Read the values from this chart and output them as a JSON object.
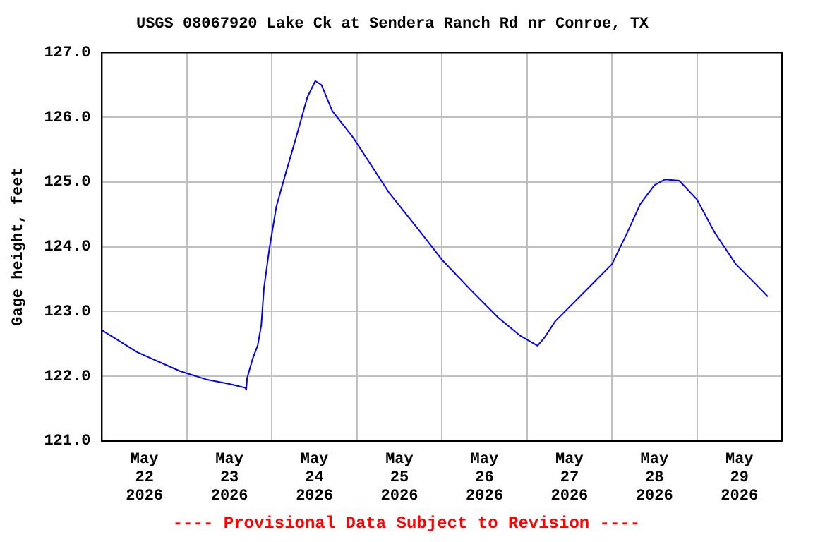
{
  "chart_data": {
    "type": "line",
    "title": "USGS 08067920 Lake Ck at Sendera Ranch Rd nr Conroe, TX",
    "ylabel": "Gage height, feet",
    "annotations": [
      "---- Provisional Data Subject to Revision ----"
    ],
    "x": [
      "2026-05-22T00:00",
      "2026-05-22T10:00",
      "2026-05-22T22:00",
      "2026-05-23T05:30",
      "2026-05-23T12:00",
      "2026-05-23T16:30",
      "2026-05-23T16:45",
      "2026-05-23T17:00",
      "2026-05-23T18:30",
      "2026-05-23T20:00",
      "2026-05-23T21:00",
      "2026-05-23T21:45",
      "2026-05-23T23:15",
      "2026-05-24T01:15",
      "2026-05-24T03:30",
      "2026-05-24T07:00",
      "2026-05-24T10:00",
      "2026-05-24T12:15",
      "2026-05-24T14:00",
      "2026-05-24T17:00",
      "2026-05-24T23:00",
      "2026-05-25T09:00",
      "2026-05-25T17:00",
      "2026-05-26T00:00",
      "2026-05-26T08:00",
      "2026-05-26T16:00",
      "2026-05-26T22:00",
      "2026-05-27T03:00",
      "2026-05-27T05:00",
      "2026-05-27T08:00",
      "2026-05-27T12:00",
      "2026-05-27T16:00",
      "2026-05-27T20:00",
      "2026-05-28T00:00",
      "2026-05-28T04:00",
      "2026-05-28T08:00",
      "2026-05-28T12:00",
      "2026-05-28T15:00",
      "2026-05-28T19:00",
      "2026-05-29T00:00",
      "2026-05-29T05:00",
      "2026-05-29T11:00",
      "2026-05-29T17:00",
      "2026-05-29T20:00"
    ],
    "series": [
      {
        "color": "#0000ff",
        "values": [
          122.71,
          122.37,
          122.08,
          121.95,
          121.88,
          121.82,
          121.79,
          121.97,
          122.26,
          122.48,
          122.79,
          123.36,
          123.96,
          124.62,
          125.06,
          125.72,
          126.31,
          126.56,
          126.5,
          126.1,
          125.68,
          124.84,
          124.29,
          123.8,
          123.34,
          122.9,
          122.63,
          122.47,
          122.6,
          122.85,
          123.07,
          123.29,
          123.51,
          123.73,
          124.18,
          124.66,
          124.95,
          125.04,
          125.02,
          124.73,
          124.22,
          123.73,
          123.4,
          123.23
        ]
      }
    ],
    "xlim": [
      "2026-05-22T00:00",
      "2026-05-30T00:00"
    ],
    "xticks": [
      {
        "value": "2026-05-22T12:00",
        "label": "May\n22\n2026"
      },
      {
        "value": "2026-05-23T12:00",
        "label": "May\n23\n2026"
      },
      {
        "value": "2026-05-24T12:00",
        "label": "May\n24\n2026"
      },
      {
        "value": "2026-05-25T12:00",
        "label": "May\n25\n2026"
      },
      {
        "value": "2026-05-26T12:00",
        "label": "May\n26\n2026"
      },
      {
        "value": "2026-05-27T12:00",
        "label": "May\n27\n2026"
      },
      {
        "value": "2026-05-28T12:00",
        "label": "May\n28\n2026"
      },
      {
        "value": "2026-05-29T12:00",
        "label": "May\n29\n2026"
      }
    ],
    "ylim": [
      121,
      127
    ],
    "yticks": [
      {
        "value": 121,
        "label": "121.0"
      },
      {
        "value": 122,
        "label": "122.0"
      },
      {
        "value": 123,
        "label": "123.0"
      },
      {
        "value": 124,
        "label": "124.0"
      },
      {
        "value": 125,
        "label": "125.0"
      },
      {
        "value": 126,
        "label": "126.0"
      },
      {
        "value": 127,
        "label": "127.0"
      }
    ],
    "grid": true,
    "legend": false,
    "marker": "none",
    "line_style": "solid"
  }
}
